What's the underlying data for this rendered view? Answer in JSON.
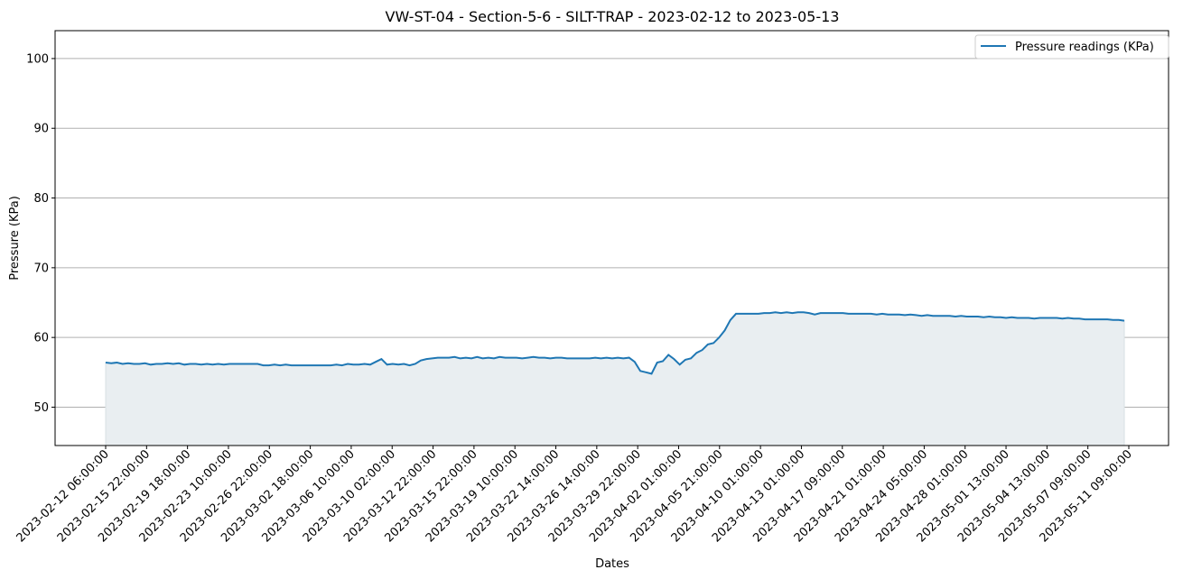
{
  "chart_data": {
    "type": "area",
    "title": "VW-ST-04 - Section-5-6 - SILT-TRAP - 2023-02-12 to 2023-05-13",
    "xlabel": "Dates",
    "ylabel": "Pressure (KPa)",
    "ylim": [
      44.5,
      104
    ],
    "yticks": [
      50,
      60,
      70,
      80,
      90,
      100
    ],
    "grid": "horizontal",
    "legend": {
      "placement": "top-right",
      "entries": [
        "Pressure readings (KPa)"
      ]
    },
    "colors": {
      "line": "#1f77b4",
      "fill": "#e9eef1"
    },
    "xticks": [
      "2023-02-12 06:00:00",
      "2023-02-15 22:00:00",
      "2023-02-19 18:00:00",
      "2023-02-23 10:00:00",
      "2023-02-26 22:00:00",
      "2023-03-02 18:00:00",
      "2023-03-06 10:00:00",
      "2023-03-10 02:00:00",
      "2023-03-12 22:00:00",
      "2023-03-15 22:00:00",
      "2023-03-19 10:00:00",
      "2023-03-22 14:00:00",
      "2023-03-26 14:00:00",
      "2023-03-29 22:00:00",
      "2023-04-02 01:00:00",
      "2023-04-05 21:00:00",
      "2023-04-10 01:00:00",
      "2023-04-13 01:00:00",
      "2023-04-17 09:00:00",
      "2023-04-21 01:00:00",
      "2023-04-24 05:00:00",
      "2023-04-28 01:00:00",
      "2023-05-01 13:00:00",
      "2023-05-04 13:00:00",
      "2023-05-07 09:00:00",
      "2023-05-11 09:00:00"
    ],
    "series": [
      {
        "name": "Pressure readings (KPa)",
        "y": [
          56.4,
          56.3,
          56.4,
          56.2,
          56.3,
          56.2,
          56.2,
          56.3,
          56.1,
          56.2,
          56.2,
          56.3,
          56.2,
          56.3,
          56.1,
          56.2,
          56.2,
          56.1,
          56.2,
          56.1,
          56.2,
          56.1,
          56.2,
          56.2,
          56.2,
          56.2,
          56.2,
          56.2,
          56.0,
          56.0,
          56.1,
          56.0,
          56.1,
          56.0,
          56.0,
          56.0,
          56.0,
          56.0,
          56.0,
          56.0,
          56.0,
          56.1,
          56.0,
          56.2,
          56.1,
          56.1,
          56.2,
          56.1,
          56.5,
          56.9,
          56.1,
          56.2,
          56.1,
          56.2,
          56.0,
          56.2,
          56.7,
          56.9,
          57.0,
          57.1,
          57.1,
          57.1,
          57.2,
          57.0,
          57.1,
          57.0,
          57.2,
          57.0,
          57.1,
          57.0,
          57.2,
          57.1,
          57.1,
          57.1,
          57.0,
          57.1,
          57.2,
          57.1,
          57.1,
          57.0,
          57.1,
          57.1,
          57.0,
          57.0,
          57.0,
          57.0,
          57.0,
          57.1,
          57.0,
          57.1,
          57.0,
          57.1,
          57.0,
          57.1,
          56.5,
          55.2,
          55.0,
          54.8,
          56.4,
          56.6,
          57.5,
          56.9,
          56.1,
          56.8,
          57.0,
          57.8,
          58.2,
          59.0,
          59.2,
          60.0,
          61.0,
          62.5,
          63.4,
          63.4,
          63.4,
          63.4,
          63.4,
          63.5,
          63.5,
          63.6,
          63.5,
          63.6,
          63.5,
          63.6,
          63.6,
          63.5,
          63.3,
          63.5,
          63.5,
          63.5,
          63.5,
          63.5,
          63.4,
          63.4,
          63.4,
          63.4,
          63.4,
          63.3,
          63.4,
          63.3,
          63.3,
          63.3,
          63.2,
          63.3,
          63.2,
          63.1,
          63.2,
          63.1,
          63.1,
          63.1,
          63.1,
          63.0,
          63.1,
          63.0,
          63.0,
          63.0,
          62.9,
          63.0,
          62.9,
          62.9,
          62.8,
          62.9,
          62.8,
          62.8,
          62.8,
          62.7,
          62.8,
          62.8,
          62.8,
          62.8,
          62.7,
          62.8,
          62.7,
          62.7,
          62.6,
          62.6,
          62.6,
          62.6,
          62.6,
          62.5,
          62.5,
          62.4
        ]
      }
    ]
  }
}
